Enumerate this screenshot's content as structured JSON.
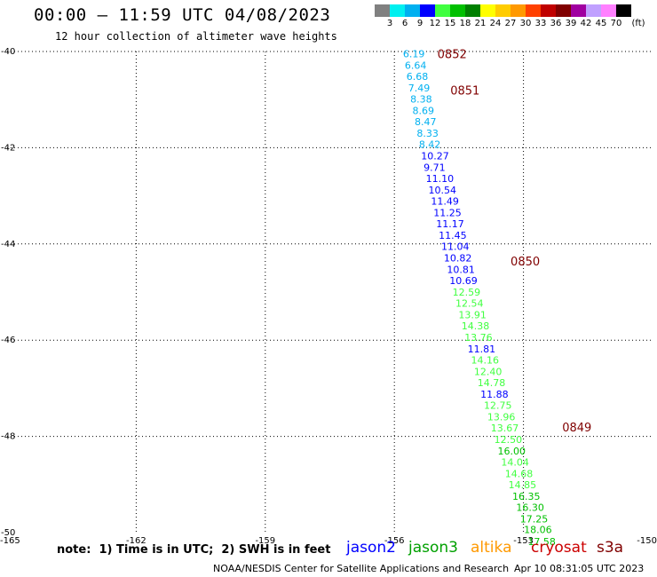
{
  "header": {
    "title": "00:00 – 11:59 UTC 04/08/2023",
    "subtitle": "12 hour collection of altimeter wave heights"
  },
  "color_scale": {
    "labels": [
      "3",
      "6",
      "9",
      "12",
      "15",
      "18",
      "21",
      "24",
      "27",
      "30",
      "33",
      "36",
      "39",
      "42",
      "45",
      "70",
      "(ft)"
    ],
    "colors": [
      "#808080",
      "#00f0f0",
      "#00b0f0",
      "#0000ff",
      "#40ff40",
      "#00c000",
      "#008000",
      "#ffff00",
      "#ffcc00",
      "#ff9900",
      "#ff4000",
      "#c00000",
      "#800000",
      "#a000a0",
      "#c0a0ff",
      "#ff80ff",
      "#000000"
    ]
  },
  "footer": {
    "note": "note:  1) Time is in UTC;  2) SWH is in feet",
    "credit": "NOAA/NESDIS Center for Satellite Applications and Research",
    "timestamp": "Apr 10 08:31:05 UTC 2023"
  },
  "legend": [
    {
      "name": "jason2",
      "color": "#0000ff"
    },
    {
      "name": "jason3",
      "color": "#00a000"
    },
    {
      "name": "altika",
      "color": "#ff9900"
    },
    {
      "name": "cryosat",
      "color": "#cc0000"
    },
    {
      "name": "s3a",
      "color": "#800000"
    }
  ],
  "chart_data": {
    "type": "scatter",
    "title": "00:00 – 11:59 UTC 04/08/2023",
    "xlabel": "",
    "ylabel": "",
    "xlim": [
      -165,
      -150
    ],
    "ylim": [
      -50,
      -40
    ],
    "x_ticks": [
      "-165",
      "-162",
      "-159",
      "-156",
      "-153",
      "-150"
    ],
    "y_ticks": [
      "-40",
      "-42",
      "-44",
      "-46",
      "-48",
      "-50"
    ],
    "grid": true,
    "track_times": [
      {
        "label": "0852",
        "lon": -155.0,
        "lat": -40.05
      },
      {
        "label": "0851",
        "lon": -154.7,
        "lat": -40.8
      },
      {
        "label": "0850",
        "lon": -153.3,
        "lat": -44.35
      },
      {
        "label": "0849",
        "lon": -152.1,
        "lat": -47.8
      }
    ],
    "points": [
      {
        "lon": -155.8,
        "lat": -40.05,
        "swh": "6.19",
        "color": "#00b0f0"
      },
      {
        "lon": -155.76,
        "lat": -40.29,
        "swh": "6.64",
        "color": "#00b0f0"
      },
      {
        "lon": -155.72,
        "lat": -40.52,
        "swh": "6.68",
        "color": "#00b0f0"
      },
      {
        "lon": -155.68,
        "lat": -40.76,
        "swh": "7.49",
        "color": "#00b0f0"
      },
      {
        "lon": -155.63,
        "lat": -40.99,
        "swh": "8.38",
        "color": "#00b0f0"
      },
      {
        "lon": -155.58,
        "lat": -41.23,
        "swh": "8.69",
        "color": "#00b0f0"
      },
      {
        "lon": -155.53,
        "lat": -41.46,
        "swh": "8.47",
        "color": "#00b0f0"
      },
      {
        "lon": -155.48,
        "lat": -41.7,
        "swh": "8.33",
        "color": "#00b0f0"
      },
      {
        "lon": -155.43,
        "lat": -41.93,
        "swh": "8.42",
        "color": "#00b0f0"
      },
      {
        "lon": -155.38,
        "lat": -42.17,
        "swh": "10.27",
        "color": "#0000ff"
      },
      {
        "lon": -155.32,
        "lat": -42.41,
        "swh": "9.71",
        "color": "#0000ff"
      },
      {
        "lon": -155.27,
        "lat": -42.64,
        "swh": "11.10",
        "color": "#0000ff"
      },
      {
        "lon": -155.21,
        "lat": -42.88,
        "swh": "10.54",
        "color": "#0000ff"
      },
      {
        "lon": -155.15,
        "lat": -43.11,
        "swh": "11.49",
        "color": "#0000ff"
      },
      {
        "lon": -155.09,
        "lat": -43.35,
        "swh": "11.25",
        "color": "#0000ff"
      },
      {
        "lon": -155.03,
        "lat": -43.58,
        "swh": "11.17",
        "color": "#0000ff"
      },
      {
        "lon": -154.97,
        "lat": -43.82,
        "swh": "11.45",
        "color": "#0000ff"
      },
      {
        "lon": -154.91,
        "lat": -44.05,
        "swh": "11.04",
        "color": "#0000ff"
      },
      {
        "lon": -154.85,
        "lat": -44.29,
        "swh": "10.82",
        "color": "#0000ff"
      },
      {
        "lon": -154.78,
        "lat": -44.53,
        "swh": "10.81",
        "color": "#0000ff"
      },
      {
        "lon": -154.72,
        "lat": -44.76,
        "swh": "10.69",
        "color": "#0000ff"
      },
      {
        "lon": -154.65,
        "lat": -45.0,
        "swh": "12.59",
        "color": "#40ff40"
      },
      {
        "lon": -154.58,
        "lat": -45.23,
        "swh": "12.54",
        "color": "#40ff40"
      },
      {
        "lon": -154.51,
        "lat": -45.47,
        "swh": "13.91",
        "color": "#40ff40"
      },
      {
        "lon": -154.44,
        "lat": -45.7,
        "swh": "14.38",
        "color": "#40ff40"
      },
      {
        "lon": -154.37,
        "lat": -45.94,
        "swh": "13.76",
        "color": "#40ff40"
      },
      {
        "lon": -154.3,
        "lat": -46.18,
        "swh": "11.81",
        "color": "#0000ff"
      },
      {
        "lon": -154.22,
        "lat": -46.41,
        "swh": "14.16",
        "color": "#40ff40"
      },
      {
        "lon": -154.15,
        "lat": -46.65,
        "swh": "12.40",
        "color": "#40ff40"
      },
      {
        "lon": -154.07,
        "lat": -46.88,
        "swh": "14.78",
        "color": "#40ff40"
      },
      {
        "lon": -154.0,
        "lat": -47.12,
        "swh": "11.88",
        "color": "#0000ff"
      },
      {
        "lon": -153.92,
        "lat": -47.35,
        "swh": "12.75",
        "color": "#40ff40"
      },
      {
        "lon": -153.84,
        "lat": -47.59,
        "swh": "13.96",
        "color": "#40ff40"
      },
      {
        "lon": -153.76,
        "lat": -47.82,
        "swh": "13.67",
        "color": "#40ff40"
      },
      {
        "lon": -153.68,
        "lat": -48.06,
        "swh": "12.50",
        "color": "#40ff40"
      },
      {
        "lon": -153.6,
        "lat": -48.3,
        "swh": "16.00",
        "color": "#00c000"
      },
      {
        "lon": -153.52,
        "lat": -48.53,
        "swh": "14.04",
        "color": "#40ff40"
      },
      {
        "lon": -153.43,
        "lat": -48.77,
        "swh": "14.68",
        "color": "#40ff40"
      },
      {
        "lon": -153.35,
        "lat": -49.0,
        "swh": "14.85",
        "color": "#40ff40"
      },
      {
        "lon": -153.26,
        "lat": -49.24,
        "swh": "16.35",
        "color": "#00c000"
      },
      {
        "lon": -153.17,
        "lat": -49.47,
        "swh": "16.30",
        "color": "#00c000"
      },
      {
        "lon": -153.08,
        "lat": -49.71,
        "swh": "17.25",
        "color": "#00c000"
      },
      {
        "lon": -152.99,
        "lat": -49.94,
        "swh": "18.06",
        "color": "#00c000"
      },
      {
        "lon": -152.9,
        "lat": -50.18,
        "swh": "17.58",
        "color": "#00c000"
      }
    ]
  }
}
